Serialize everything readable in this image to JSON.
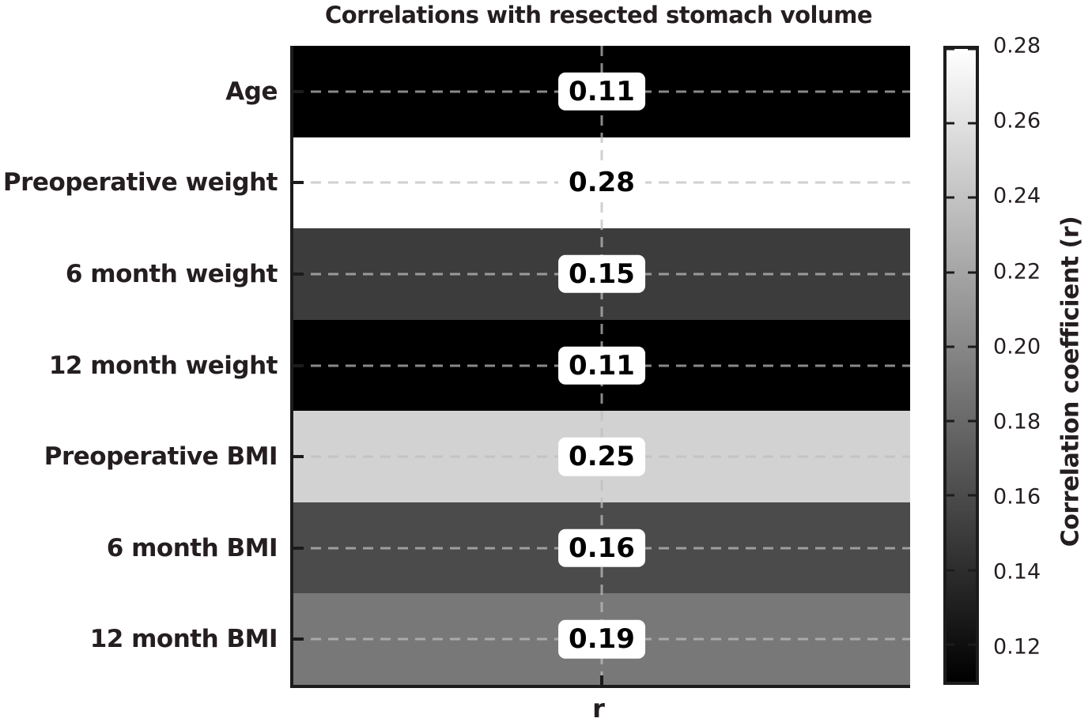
{
  "chart_data": {
    "type": "heatmap",
    "title": "Correlations with resected stomach volume",
    "xlabel": "r",
    "categories": [
      "Age",
      "Preoperative weight",
      "6 month weight",
      "12 month weight",
      "Preoperative BMI",
      "6 month BMI",
      "12 month BMI"
    ],
    "values": [
      0.11,
      0.28,
      0.15,
      0.11,
      0.25,
      0.16,
      0.19
    ],
    "value_labels": [
      "0.11",
      "0.28",
      "0.15",
      "0.11",
      "0.25",
      "0.16",
      "0.19"
    ],
    "row_colors": [
      "#000000",
      "#ffffff",
      "#3c3c3c",
      "#000000",
      "#d2d2d2",
      "#4b4b4b",
      "#787878"
    ],
    "grid": {
      "style": "dashed",
      "row_center_lines": true,
      "center_vertical_line": true
    },
    "colorbar": {
      "label": "Correlation coefficient (r)",
      "min": 0.11,
      "max": 0.28,
      "ticks": [
        "0.28",
        "0.26",
        "0.24",
        "0.22",
        "0.20",
        "0.18",
        "0.16",
        "0.14",
        "0.12"
      ],
      "gradient_top": "#ffffff",
      "gradient_bottom": "#000000"
    },
    "colors": {
      "text": "#241e20",
      "axis": "#1c1c1c",
      "value_box_bg": "#ffffff",
      "value_text": "#000000",
      "gridline": "rgba(190,190,190,0.72)"
    }
  }
}
